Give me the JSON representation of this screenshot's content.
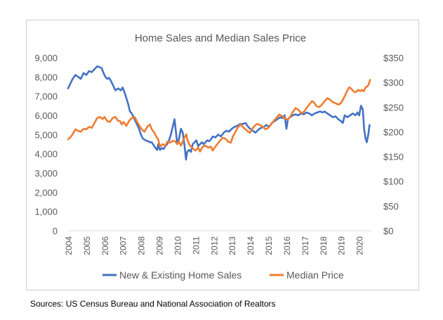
{
  "source_note": "Sources: US Census Bureau and National Association of Realtors",
  "colors": {
    "sales": "#4472C4",
    "price": "#ED7D31",
    "text": "#595959",
    "grid": "#D9D9D9"
  },
  "chart_data": {
    "type": "line",
    "title": "Home Sales and Median Sales Price",
    "x_ticks": [
      "2004",
      "2005",
      "2006",
      "2007",
      "2008",
      "2009",
      "2010",
      "2011",
      "2012",
      "2013",
      "2014",
      "2015",
      "2016",
      "2017",
      "2018",
      "2019",
      "2020"
    ],
    "xlim": [
      2004.0,
      2020.67
    ],
    "y_left": {
      "ylim": [
        0,
        9000
      ],
      "ticks": [
        0,
        1000,
        2000,
        3000,
        4000,
        5000,
        6000,
        7000,
        8000,
        9000
      ],
      "tick_labels": [
        "0",
        "1,000",
        "2,000",
        "3,000",
        "4,000",
        "5,000",
        "6,000",
        "7,000",
        "8,000",
        "9,000"
      ]
    },
    "y_right": {
      "ylim": [
        0,
        350
      ],
      "ticks": [
        0,
        50,
        100,
        150,
        200,
        250,
        300,
        350
      ],
      "tick_labels": [
        "$0",
        "$50",
        "$100",
        "$150",
        "$200",
        "$250",
        "$300",
        "$350"
      ]
    },
    "grid": false,
    "legend": "bottom",
    "series": [
      {
        "name": "New & Existing Home Sales",
        "axis": "left",
        "points": [
          [
            2004.0,
            7400
          ],
          [
            2004.1,
            7600
          ],
          [
            2004.25,
            7900
          ],
          [
            2004.4,
            8100
          ],
          [
            2004.55,
            8000
          ],
          [
            2004.7,
            7900
          ],
          [
            2004.85,
            8200
          ],
          [
            2005.0,
            8100
          ],
          [
            2005.15,
            8300
          ],
          [
            2005.3,
            8250
          ],
          [
            2005.45,
            8400
          ],
          [
            2005.6,
            8550
          ],
          [
            2005.75,
            8500
          ],
          [
            2005.85,
            8450
          ],
          [
            2005.95,
            8200
          ],
          [
            2006.05,
            8000
          ],
          [
            2006.15,
            7900
          ],
          [
            2006.25,
            7950
          ],
          [
            2006.35,
            7800
          ],
          [
            2006.5,
            7500
          ],
          [
            2006.6,
            7300
          ],
          [
            2006.75,
            7400
          ],
          [
            2006.9,
            7300
          ],
          [
            2007.0,
            7450
          ],
          [
            2007.1,
            7200
          ],
          [
            2007.2,
            6900
          ],
          [
            2007.3,
            6600
          ],
          [
            2007.4,
            6200
          ],
          [
            2007.5,
            6100
          ],
          [
            2007.6,
            5900
          ],
          [
            2007.75,
            5600
          ],
          [
            2007.9,
            5300
          ],
          [
            2008.0,
            5000
          ],
          [
            2008.1,
            4800
          ],
          [
            2008.25,
            4700
          ],
          [
            2008.4,
            4650
          ],
          [
            2008.5,
            4600
          ],
          [
            2008.6,
            4600
          ],
          [
            2008.7,
            4450
          ],
          [
            2008.8,
            4300
          ],
          [
            2008.9,
            4200
          ],
          [
            2008.95,
            4500
          ],
          [
            2009.05,
            4200
          ],
          [
            2009.15,
            4300
          ],
          [
            2009.25,
            4250
          ],
          [
            2009.35,
            4400
          ],
          [
            2009.45,
            4500
          ],
          [
            2009.55,
            4700
          ],
          [
            2009.65,
            5000
          ],
          [
            2009.75,
            5400
          ],
          [
            2009.85,
            5800
          ],
          [
            2009.92,
            5200
          ],
          [
            2010.0,
            4500
          ],
          [
            2010.1,
            4800
          ],
          [
            2010.2,
            5300
          ],
          [
            2010.3,
            5100
          ],
          [
            2010.4,
            4400
          ],
          [
            2010.48,
            3700
          ],
          [
            2010.55,
            4100
          ],
          [
            2010.65,
            4200
          ],
          [
            2010.75,
            4100
          ],
          [
            2010.85,
            4500
          ],
          [
            2010.95,
            4600
          ],
          [
            2011.05,
            4700
          ],
          [
            2011.15,
            4400
          ],
          [
            2011.25,
            4500
          ],
          [
            2011.35,
            4600
          ],
          [
            2011.45,
            4500
          ],
          [
            2011.55,
            4600
          ],
          [
            2011.65,
            4700
          ],
          [
            2011.75,
            4650
          ],
          [
            2011.85,
            4750
          ],
          [
            2011.95,
            4900
          ],
          [
            2012.1,
            4850
          ],
          [
            2012.25,
            5000
          ],
          [
            2012.4,
            4900
          ],
          [
            2012.55,
            5100
          ],
          [
            2012.7,
            5200
          ],
          [
            2012.85,
            5150
          ],
          [
            2013.0,
            5300
          ],
          [
            2013.15,
            5400
          ],
          [
            2013.3,
            5450
          ],
          [
            2013.45,
            5550
          ],
          [
            2013.6,
            5550
          ],
          [
            2013.75,
            5600
          ],
          [
            2013.9,
            5400
          ],
          [
            2014.0,
            5300
          ],
          [
            2014.15,
            5200
          ],
          [
            2014.3,
            5100
          ],
          [
            2014.45,
            5250
          ],
          [
            2014.6,
            5350
          ],
          [
            2014.75,
            5400
          ],
          [
            2014.9,
            5500
          ],
          [
            2015.05,
            5400
          ],
          [
            2015.2,
            5600
          ],
          [
            2015.35,
            5700
          ],
          [
            2015.5,
            5800
          ],
          [
            2015.65,
            5900
          ],
          [
            2015.8,
            5850
          ],
          [
            2015.9,
            6000
          ],
          [
            2016.0,
            5300
          ],
          [
            2016.08,
            5800
          ],
          [
            2016.2,
            5900
          ],
          [
            2016.35,
            6000
          ],
          [
            2016.5,
            6050
          ],
          [
            2016.65,
            6000
          ],
          [
            2016.8,
            6100
          ],
          [
            2016.95,
            6050
          ],
          [
            2017.1,
            6150
          ],
          [
            2017.25,
            6100
          ],
          [
            2017.4,
            6000
          ],
          [
            2017.55,
            6100
          ],
          [
            2017.7,
            6150
          ],
          [
            2017.85,
            6200
          ],
          [
            2018.0,
            6150
          ],
          [
            2018.1,
            6200
          ],
          [
            2018.25,
            6100
          ],
          [
            2018.4,
            6000
          ],
          [
            2018.55,
            5900
          ],
          [
            2018.7,
            5950
          ],
          [
            2018.85,
            5800
          ],
          [
            2019.0,
            5700
          ],
          [
            2019.1,
            5600
          ],
          [
            2019.2,
            6000
          ],
          [
            2019.35,
            5900
          ],
          [
            2019.5,
            6000
          ],
          [
            2019.65,
            6100
          ],
          [
            2019.8,
            6000
          ],
          [
            2019.9,
            6150
          ],
          [
            2020.0,
            6000
          ],
          [
            2020.1,
            6500
          ],
          [
            2020.2,
            6300
          ],
          [
            2020.27,
            5300
          ],
          [
            2020.35,
            4800
          ],
          [
            2020.42,
            4600
          ],
          [
            2020.5,
            5000
          ],
          [
            2020.57,
            5500
          ]
        ]
      },
      {
        "name": "Median Price",
        "axis": "right",
        "points": [
          [
            2004.0,
            185
          ],
          [
            2004.1,
            188
          ],
          [
            2004.25,
            195
          ],
          [
            2004.4,
            205
          ],
          [
            2004.55,
            202
          ],
          [
            2004.7,
            200
          ],
          [
            2004.85,
            206
          ],
          [
            2005.0,
            205
          ],
          [
            2005.15,
            210
          ],
          [
            2005.3,
            208
          ],
          [
            2005.45,
            218
          ],
          [
            2005.6,
            228
          ],
          [
            2005.75,
            230
          ],
          [
            2005.9,
            226
          ],
          [
            2006.0,
            230
          ],
          [
            2006.15,
            222
          ],
          [
            2006.3,
            220
          ],
          [
            2006.45,
            228
          ],
          [
            2006.6,
            230
          ],
          [
            2006.75,
            222
          ],
          [
            2006.85,
            222
          ],
          [
            2006.95,
            215
          ],
          [
            2007.05,
            220
          ],
          [
            2007.2,
            212
          ],
          [
            2007.35,
            222
          ],
          [
            2007.5,
            228
          ],
          [
            2007.65,
            230
          ],
          [
            2007.8,
            220
          ],
          [
            2007.95,
            210
          ],
          [
            2008.05,
            205
          ],
          [
            2008.2,
            200
          ],
          [
            2008.35,
            210
          ],
          [
            2008.5,
            215
          ],
          [
            2008.6,
            205
          ],
          [
            2008.75,
            198
          ],
          [
            2008.85,
            190
          ],
          [
            2008.95,
            185
          ],
          [
            2009.05,
            170
          ],
          [
            2009.2,
            175
          ],
          [
            2009.35,
            172
          ],
          [
            2009.45,
            180
          ],
          [
            2009.6,
            178
          ],
          [
            2009.75,
            182
          ],
          [
            2009.9,
            180
          ],
          [
            2010.0,
            175
          ],
          [
            2010.1,
            180
          ],
          [
            2010.2,
            172
          ],
          [
            2010.35,
            185
          ],
          [
            2010.5,
            195
          ],
          [
            2010.55,
            185
          ],
          [
            2010.65,
            175
          ],
          [
            2010.75,
            170
          ],
          [
            2010.9,
            165
          ],
          [
            2011.0,
            162
          ],
          [
            2011.15,
            168
          ],
          [
            2011.25,
            160
          ],
          [
            2011.4,
            170
          ],
          [
            2011.55,
            172
          ],
          [
            2011.7,
            168
          ],
          [
            2011.85,
            170
          ],
          [
            2011.95,
            162
          ],
          [
            2012.05,
            168
          ],
          [
            2012.2,
            175
          ],
          [
            2012.35,
            182
          ],
          [
            2012.5,
            188
          ],
          [
            2012.65,
            186
          ],
          [
            2012.8,
            180
          ],
          [
            2012.95,
            178
          ],
          [
            2013.05,
            190
          ],
          [
            2013.2,
            200
          ],
          [
            2013.35,
            210
          ],
          [
            2013.5,
            215
          ],
          [
            2013.6,
            210
          ],
          [
            2013.75,
            205
          ],
          [
            2013.9,
            200
          ],
          [
            2014.0,
            198
          ],
          [
            2014.1,
            205
          ],
          [
            2014.25,
            212
          ],
          [
            2014.4,
            216
          ],
          [
            2014.55,
            214
          ],
          [
            2014.7,
            210
          ],
          [
            2014.85,
            205
          ],
          [
            2015.0,
            208
          ],
          [
            2015.15,
            215
          ],
          [
            2015.3,
            222
          ],
          [
            2015.45,
            228
          ],
          [
            2015.6,
            235
          ],
          [
            2015.75,
            232
          ],
          [
            2015.9,
            228
          ],
          [
            2016.05,
            225
          ],
          [
            2016.2,
            230
          ],
          [
            2016.35,
            240
          ],
          [
            2016.5,
            248
          ],
          [
            2016.65,
            245
          ],
          [
            2016.8,
            238
          ],
          [
            2016.95,
            240
          ],
          [
            2017.1,
            248
          ],
          [
            2017.25,
            255
          ],
          [
            2017.4,
            262
          ],
          [
            2017.5,
            260
          ],
          [
            2017.65,
            252
          ],
          [
            2017.8,
            250
          ],
          [
            2017.95,
            255
          ],
          [
            2018.1,
            262
          ],
          [
            2018.25,
            268
          ],
          [
            2018.4,
            265
          ],
          [
            2018.55,
            260
          ],
          [
            2018.7,
            258
          ],
          [
            2018.85,
            255
          ],
          [
            2019.0,
            258
          ],
          [
            2019.15,
            268
          ],
          [
            2019.3,
            280
          ],
          [
            2019.45,
            290
          ],
          [
            2019.55,
            288
          ],
          [
            2019.65,
            283
          ],
          [
            2019.8,
            280
          ],
          [
            2019.95,
            285
          ],
          [
            2020.05,
            282
          ],
          [
            2020.15,
            285
          ],
          [
            2020.25,
            282
          ],
          [
            2020.35,
            290
          ],
          [
            2020.45,
            292
          ],
          [
            2020.52,
            296
          ],
          [
            2020.6,
            305
          ]
        ]
      }
    ]
  }
}
